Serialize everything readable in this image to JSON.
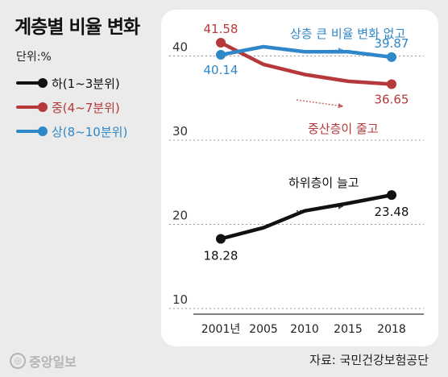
{
  "title": "계층별 비율 변화",
  "unit": "단위:%",
  "legend": [
    {
      "label": "하(1~3분위)",
      "color": "#111111"
    },
    {
      "label": "중(4~7분위)",
      "color": "#b5393b"
    },
    {
      "label": "상(8~10분위)",
      "color": "#2e87c8"
    }
  ],
  "source": "자료: 국민건강보험공단",
  "brand": "중앙일보",
  "chart_data": {
    "type": "line",
    "x": [
      2001,
      2005,
      2010,
      2015,
      2018
    ],
    "x_tick_labels": [
      "2001년",
      "2005",
      "2010",
      "2015",
      "2018"
    ],
    "ylim": [
      10,
      45
    ],
    "y_ticks": [
      10,
      20,
      30,
      40
    ],
    "grid": true,
    "series": [
      {
        "name": "하(1~3분위)",
        "color": "#111111",
        "values": [
          18.28,
          19.6,
          21.6,
          22.5,
          23.48
        ],
        "data_labels": [
          "18.28",
          "",
          "",
          "",
          "23.48"
        ]
      },
      {
        "name": "중(4~7분위)",
        "color": "#b5393b",
        "values": [
          41.58,
          39.0,
          37.8,
          37.0,
          36.65
        ],
        "data_labels": [
          "41.58",
          "",
          "",
          "",
          "36.65"
        ]
      },
      {
        "name": "상(8~10분위)",
        "color": "#2e87c8",
        "values": [
          40.14,
          41.1,
          40.5,
          40.5,
          39.87
        ],
        "data_labels": [
          "40.14",
          "",
          "",
          "",
          "39.87"
        ]
      }
    ],
    "annotations": [
      {
        "text": "상층 큰 비율 변화 없고",
        "color": "#2e87c8"
      },
      {
        "text": "중산층이 줄고",
        "color": "#b5393b"
      },
      {
        "text": "하위층이 늘고",
        "color": "#111111"
      }
    ]
  }
}
